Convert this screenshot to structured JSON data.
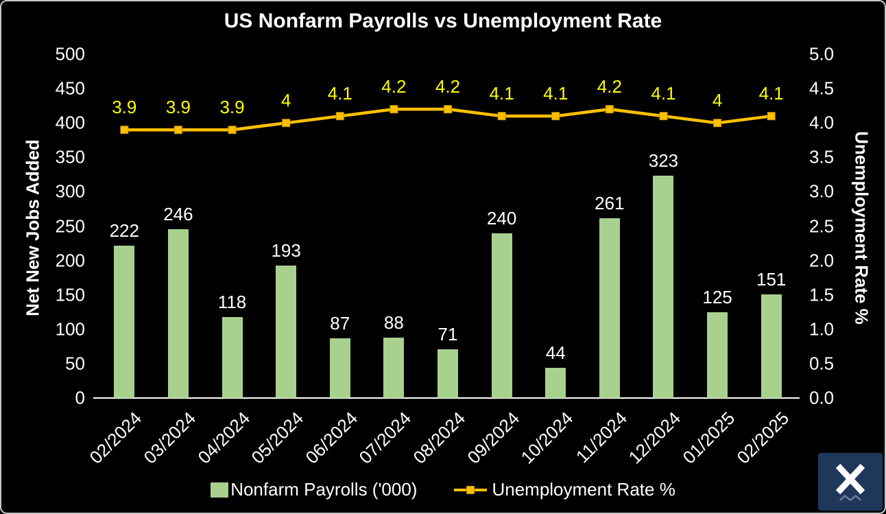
{
  "title": "US Nonfarm Payrolls vs Unemployment Rate",
  "left_axis": {
    "title": "Net New Jobs Added",
    "min": 0,
    "max": 500,
    "step": 50,
    "tick_labels": [
      "0",
      "50",
      "100",
      "150",
      "200",
      "250",
      "300",
      "350",
      "400",
      "450",
      "500"
    ]
  },
  "right_axis": {
    "title": "Unemployment Rate %",
    "min": 0,
    "max": 5,
    "step": 0.5,
    "tick_labels": [
      "0.0",
      "0.5",
      "1.0",
      "1.5",
      "2.0",
      "2.5",
      "3.0",
      "3.5",
      "4.0",
      "4.5",
      "5.0"
    ]
  },
  "legend": {
    "payrolls_label": "Nonfarm Payrolls ('000)",
    "unemployment_label": "Unemployment Rate %"
  },
  "colors": {
    "background": "#000000",
    "bar_fill": "#a9d18e",
    "line_stroke": "#ffc000",
    "line_marker_border": "#bf9000",
    "line_label": "#ffff00",
    "text": "#ffffff",
    "axis_line": "#ffffff",
    "logo_background": "#20375c"
  },
  "logo": {
    "icon_name": "x-logo-icon"
  },
  "chart_data": {
    "type": "bar+line",
    "categories": [
      "02/2024",
      "03/2024",
      "04/2024",
      "05/2024",
      "06/2024",
      "07/2024",
      "08/2024",
      "09/2024",
      "10/2024",
      "11/2024",
      "12/2024",
      "01/2025",
      "02/2025"
    ],
    "series": [
      {
        "name": "Nonfarm Payrolls ('000)",
        "type": "bar",
        "axis": "left",
        "color": "#a9d18e",
        "values": [
          222,
          246,
          118,
          193,
          87,
          88,
          71,
          240,
          44,
          261,
          323,
          125,
          151
        ]
      },
      {
        "name": "Unemployment Rate %",
        "type": "line",
        "axis": "right",
        "color": "#ffc000",
        "values": [
          3.9,
          3.9,
          3.9,
          4,
          4.1,
          4.2,
          4.2,
          4.1,
          4.1,
          4.2,
          4.1,
          4,
          4.1
        ]
      }
    ],
    "title": "US Nonfarm Payrolls vs Unemployment Rate",
    "xlabel": "",
    "ylabel_left": "Net New Jobs Added",
    "ylabel_right": "Unemployment Rate %",
    "ylim_left": [
      0,
      500
    ],
    "ylim_right": [
      0,
      5
    ],
    "grid": false,
    "legend_position": "bottom",
    "data_labels": true
  }
}
